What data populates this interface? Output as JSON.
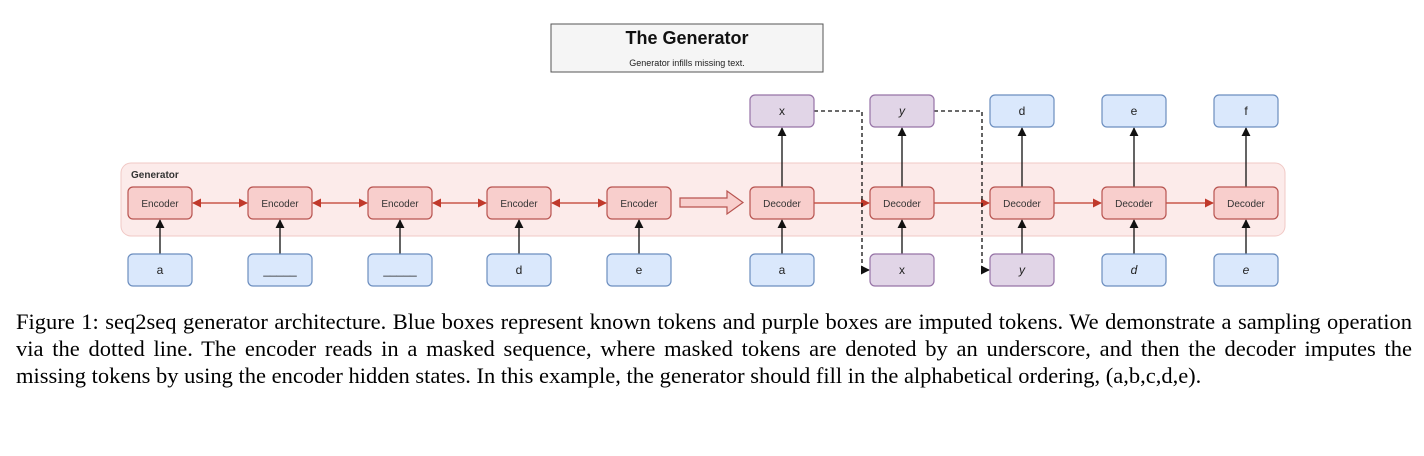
{
  "title_box": {
    "title": "The Generator",
    "subtitle": "Generator infills missing text."
  },
  "group": {
    "label": "Generator"
  },
  "encoders": [
    {
      "label": "Encoder",
      "input": "a",
      "input_italic": false
    },
    {
      "label": "Encoder",
      "input": "_____",
      "input_italic": false
    },
    {
      "label": "Encoder",
      "input": "_____",
      "input_italic": false
    },
    {
      "label": "Encoder",
      "input": "d",
      "input_italic": false
    },
    {
      "label": "Encoder",
      "input": "e",
      "input_italic": false
    }
  ],
  "decoders": [
    {
      "label": "Decoder",
      "input": "a",
      "input_kind": "known",
      "input_italic": false,
      "output": "x",
      "output_kind": "imputed",
      "output_italic": false
    },
    {
      "label": "Decoder",
      "input": "x",
      "input_kind": "imputed",
      "input_italic": false,
      "output": "y",
      "output_kind": "imputed",
      "output_italic": true
    },
    {
      "label": "Decoder",
      "input": "y",
      "input_kind": "imputed",
      "input_italic": true,
      "output": "d",
      "output_kind": "known",
      "output_italic": false
    },
    {
      "label": "Decoder",
      "input": "d",
      "input_kind": "known",
      "input_italic": true,
      "output": "e",
      "output_kind": "known",
      "output_italic": false
    },
    {
      "label": "Decoder",
      "input": "e",
      "input_kind": "known",
      "input_italic": true,
      "output": "f",
      "output_kind": "known",
      "output_italic": false
    }
  ],
  "colors": {
    "known_fill": "#dae8fc",
    "known_stroke": "#6c8ebf",
    "imputed_fill": "#e1d5e7",
    "imputed_stroke": "#9673a6",
    "node_fill": "#f8cecc",
    "node_stroke": "#b85450",
    "group_fill": "#fcebea",
    "group_stroke": "#f1c9c6",
    "arrow_red": "#c0392b"
  },
  "caption": "Figure 1: seq2seq generator architecture. Blue boxes represent known tokens and purple boxes are imputed tokens. We demonstrate a sampling operation via the dotted line. The encoder reads in a masked sequence, where masked tokens are denoted by an underscore, and then the decoder imputes the missing tokens by using the encoder hidden states. In this example, the generator should fill in the alphabetical ordering, (a,b,c,d,e)."
}
